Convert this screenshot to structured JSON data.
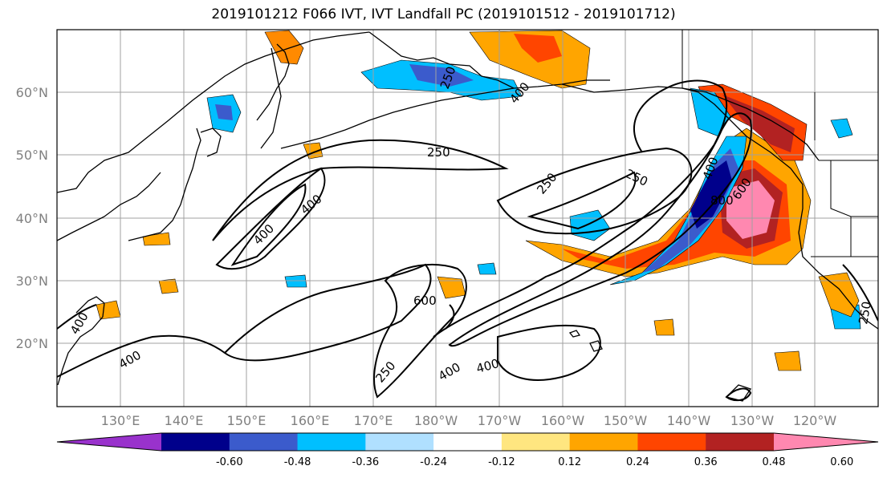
{
  "title": "2019101212 F066 IVT, IVT Landfall PC (2019101512 - 2019101712)",
  "lat_labels": [
    "60°N",
    "50°N",
    "40°N",
    "30°N",
    "20°N"
  ],
  "lon_labels": [
    "130°E",
    "140°E",
    "150°E",
    "160°E",
    "170°E",
    "180°W",
    "170°W",
    "160°W",
    "150°W",
    "140°W",
    "130°W",
    "120°W"
  ],
  "colorbar": {
    "colors": [
      "#9932cc",
      "#00008b",
      "#3b5bcc",
      "#00bfff",
      "#b0e0ff",
      "#ffffff",
      "#ffe680",
      "#ffa500",
      "#ff4500",
      "#b22222",
      "#ff88b0"
    ],
    "ticks": [
      "-0.60",
      "-0.48",
      "-0.36",
      "-0.24",
      "-0.12",
      "0.12",
      "0.24",
      "0.36",
      "0.48",
      "0.60"
    ]
  },
  "contour_labels": [
    "250",
    "400",
    "400",
    "250",
    "250",
    "400",
    "250",
    "400",
    "800",
    "600",
    "600",
    "400",
    "400",
    "250",
    "400",
    "400",
    "250",
    "400",
    "400",
    "250",
    "600"
  ],
  "colors": {
    "grid": "#a0a0a0",
    "contour": "#000000",
    "coast": "#000000"
  }
}
